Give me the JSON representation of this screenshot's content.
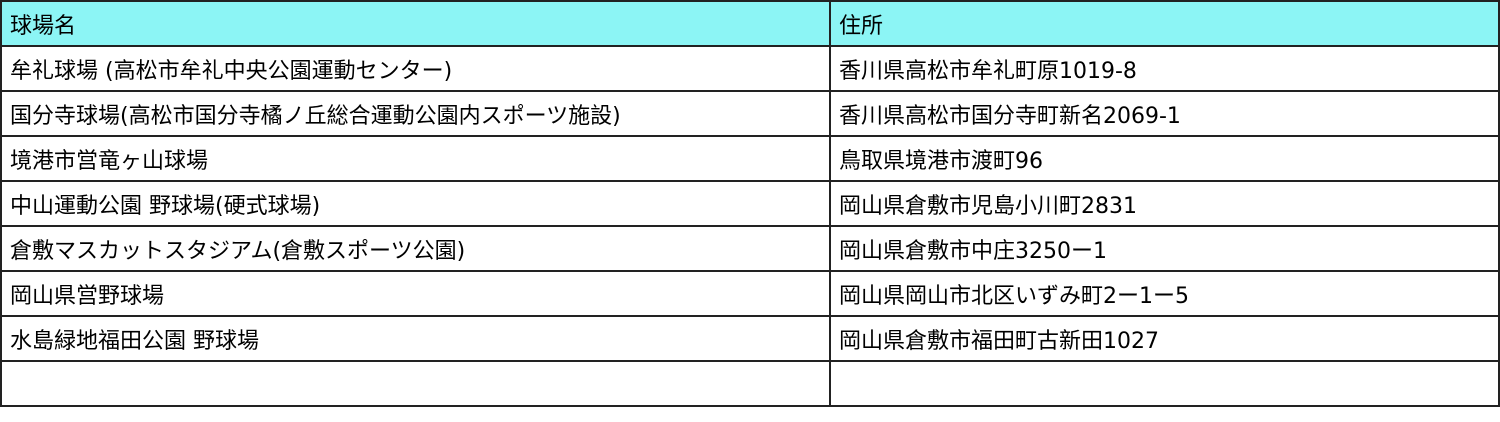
{
  "table": {
    "headers": [
      "球場名",
      "住所"
    ],
    "header_bg": "#8cf5f5",
    "rows": [
      [
        "牟礼球場 (高松市牟礼中央公園運動センター)",
        "香川県高松市牟礼町原1019-8"
      ],
      [
        "国分寺球場(高松市国分寺橘ノ丘総合運動公園内スポーツ施設)",
        "香川県高松市国分寺町新名2069-1"
      ],
      [
        "境港市営竜ヶ山球場",
        "鳥取県境港市渡町96"
      ],
      [
        "中山運動公園 野球場(硬式球場)",
        "岡山県倉敷市児島小川町2831"
      ],
      [
        "倉敷マスカットスタジアム(倉敷スポーツ公園)",
        "岡山県倉敷市中庄3250ー1"
      ],
      [
        "岡山県営野球場",
        "岡山県岡山市北区いずみ町2ー1ー5"
      ],
      [
        "水島緑地福田公園 野球場",
        "岡山県倉敷市福田町古新田1027"
      ],
      [
        "",
        ""
      ]
    ]
  }
}
